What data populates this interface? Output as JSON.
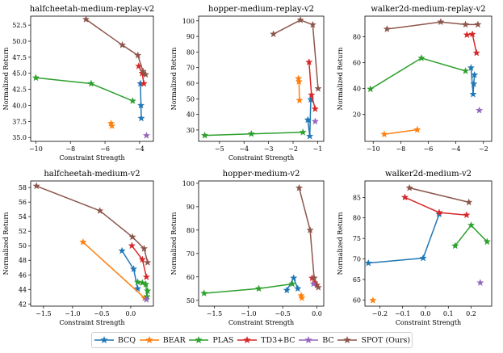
{
  "methods": [
    {
      "name": "BCQ",
      "color": "#1f77b4"
    },
    {
      "name": "BEAR",
      "color": "#ff7f0e"
    },
    {
      "name": "PLAS",
      "color": "#2ca02c"
    },
    {
      "name": "TD3+BC",
      "color": "#d62728"
    },
    {
      "name": "BC",
      "color": "#9467bd"
    },
    {
      "name": "SPOT (Ours)",
      "color": "#8c564b"
    }
  ],
  "chart_data": [
    {
      "type": "line",
      "title": "halfcheetah-medium-replay-v2",
      "xlabel": "Constraint Strength",
      "ylabel": "Normalized Return",
      "xlim": [
        -10.3,
        -3.2
      ],
      "ylim": [
        34.4,
        53.9
      ],
      "xticks": [
        -10,
        -8,
        -6,
        -4
      ],
      "yticks": [
        35.0,
        37.5,
        40.0,
        42.5,
        45.0,
        47.5,
        50.0,
        52.5
      ],
      "series": [
        {
          "name": "BCQ",
          "x": [
            -3.95,
            -3.92,
            -3.9
          ],
          "y": [
            43.4,
            40.0,
            38.0
          ]
        },
        {
          "name": "BEAR",
          "x": [
            -5.65,
            -5.6
          ],
          "y": [
            37.2,
            36.8
          ]
        },
        {
          "name": "PLAS",
          "x": [
            -10.0,
            -6.8,
            -4.4
          ],
          "y": [
            44.3,
            43.4,
            40.7
          ]
        },
        {
          "name": "TD3+BC",
          "x": [
            -4.05,
            -3.85,
            -3.75
          ],
          "y": [
            46.1,
            45.0,
            43.4
          ]
        },
        {
          "name": "BC",
          "x": [
            -3.6
          ],
          "y": [
            35.3
          ]
        },
        {
          "name": "SPOT (Ours)",
          "x": [
            -7.1,
            -5.0,
            -4.1,
            -3.8,
            -3.65
          ],
          "y": [
            53.4,
            49.4,
            47.8,
            45.3,
            44.8
          ]
        }
      ]
    },
    {
      "type": "line",
      "title": "hopper-medium-replay-v2",
      "xlabel": "Constraint Strength",
      "ylabel": "Normalized Return",
      "xlim": [
        -5.85,
        -0.75
      ],
      "ylim": [
        22.7,
        103.0
      ],
      "xticks": [
        -5,
        -4,
        -3,
        -2,
        -1
      ],
      "yticks": [
        30,
        40,
        50,
        60,
        70,
        80,
        90,
        100
      ],
      "series": [
        {
          "name": "BCQ",
          "x": [
            -1.4,
            -1.32,
            -1.28
          ],
          "y": [
            36.5,
            26.0,
            49.5
          ]
        },
        {
          "name": "BEAR",
          "x": [
            -1.78,
            -1.76,
            -1.74
          ],
          "y": [
            63.0,
            61.0,
            49.0
          ]
        },
        {
          "name": "PLAS",
          "x": [
            -5.6,
            -3.7,
            -1.6
          ],
          "y": [
            26.5,
            27.5,
            28.5
          ]
        },
        {
          "name": "TD3+BC",
          "x": [
            -1.35,
            -1.25,
            -1.1
          ],
          "y": [
            73.5,
            52.5,
            43.5
          ]
        },
        {
          "name": "BC",
          "x": [
            -1.1
          ],
          "y": [
            35.5
          ]
        },
        {
          "name": "SPOT (Ours)",
          "x": [
            -2.8,
            -1.7,
            -1.2,
            -0.98
          ],
          "y": [
            91.5,
            100.5,
            97.5,
            56.5
          ]
        }
      ]
    },
    {
      "type": "line",
      "title": "walker2d-medium-replay-v2",
      "xlabel": "",
      "ylabel": "Normalized Return",
      "xlim": [
        -10.6,
        -1.4
      ],
      "ylim": [
        -1,
        96
      ],
      "xticks": [
        -10,
        -8,
        -6,
        -4,
        -2
      ],
      "yticks": [
        20,
        40,
        60,
        80
      ],
      "series": [
        {
          "name": "BCQ",
          "x": [
            -2.9,
            -2.75,
            -2.7,
            -2.65
          ],
          "y": [
            56.0,
            35.5,
            43.5,
            50.5
          ]
        },
        {
          "name": "BEAR",
          "x": [
            -9.2,
            -6.8
          ],
          "y": [
            4.5,
            8.0
          ]
        },
        {
          "name": "PLAS",
          "x": [
            -10.2,
            -6.5,
            -3.3
          ],
          "y": [
            39.5,
            63.5,
            53.5
          ]
        },
        {
          "name": "TD3+BC",
          "x": [
            -3.2,
            -2.8,
            -2.5
          ],
          "y": [
            81.5,
            82.0,
            67.5
          ]
        },
        {
          "name": "BC",
          "x": [
            -2.3
          ],
          "y": [
            23.0
          ]
        },
        {
          "name": "SPOT (Ours)",
          "x": [
            -9.0,
            -5.1,
            -3.3,
            -2.4
          ],
          "y": [
            86.0,
            91.5,
            89.5,
            89.5
          ]
        }
      ]
    },
    {
      "type": "line",
      "title": "halfcheetah-medium-v2",
      "xlabel": "Constraint Strength",
      "ylabel": "Normalized Return",
      "xlim": [
        -1.72,
        0.39
      ],
      "ylim": [
        41.7,
        58.9
      ],
      "xticks": [
        -1.5,
        -1.0,
        -0.5,
        0.0
      ],
      "yticks": [
        42,
        44,
        46,
        48,
        50,
        52,
        54,
        56,
        58
      ],
      "series": [
        {
          "name": "BCQ",
          "x": [
            -0.15,
            0.05,
            0.12
          ],
          "y": [
            49.3,
            46.8,
            44.1
          ]
        },
        {
          "name": "BEAR",
          "x": [
            -0.82,
            0.24
          ],
          "y": [
            50.5,
            42.8
          ]
        },
        {
          "name": "PLAS",
          "x": [
            0.12,
            0.2,
            0.26,
            0.28,
            0.29
          ],
          "y": [
            45.0,
            44.9,
            44.7,
            43.0,
            43.8
          ]
        },
        {
          "name": "TD3+BC",
          "x": [
            0.02,
            0.2,
            0.27
          ],
          "y": [
            50.0,
            48.1,
            45.7
          ]
        },
        {
          "name": "BC",
          "x": [
            0.27
          ],
          "y": [
            42.6
          ]
        },
        {
          "name": "SPOT (Ours)",
          "x": [
            -1.62,
            -0.53,
            0.03,
            0.23,
            0.29
          ],
          "y": [
            58.2,
            54.8,
            51.2,
            49.6,
            47.7
          ]
        }
      ]
    },
    {
      "type": "line",
      "title": "hopper-medium-v2",
      "xlabel": "Constraint Strength",
      "ylabel": "Normalized Return",
      "xlim": [
        -1.73,
        0.1
      ],
      "ylim": [
        47.5,
        101
      ],
      "xticks": [
        -1.5,
        -1.0,
        -0.5,
        0.0
      ],
      "yticks": [
        50,
        60,
        70,
        80,
        90,
        100
      ],
      "series": [
        {
          "name": "BCQ",
          "x": [
            -0.44,
            -0.34,
            -0.28
          ],
          "y": [
            54.3,
            59.5,
            55.0
          ]
        },
        {
          "name": "BEAR",
          "x": [
            -0.23,
            -0.22
          ],
          "y": [
            52.0,
            51.0
          ]
        },
        {
          "name": "PLAS",
          "x": [
            -1.65,
            -0.85,
            -0.36
          ],
          "y": [
            53.0,
            55.0,
            57.0
          ]
        },
        {
          "name": "TD3+BC",
          "x": [
            -0.07,
            -0.03,
            0.0
          ],
          "y": [
            59.5,
            57.5,
            56.5
          ]
        },
        {
          "name": "BC",
          "x": [
            -0.05
          ],
          "y": [
            57.0
          ]
        },
        {
          "name": "SPOT (Ours)",
          "x": [
            -0.26,
            -0.1,
            -0.04,
            0.02
          ],
          "y": [
            98.0,
            80.0,
            59.5,
            55.5
          ]
        }
      ]
    },
    {
      "type": "line",
      "title": "walker2d-medium-v2",
      "xlabel": "Constraint Strength",
      "ylabel": "Normalized Return",
      "xlim": [
        -0.265,
        0.29
      ],
      "ylim": [
        58.5,
        89
      ],
      "xticks": [
        -0.2,
        -0.1,
        0.0,
        0.1,
        0.2
      ],
      "yticks": [
        60,
        65,
        70,
        75,
        80,
        85
      ],
      "series": [
        {
          "name": "BCQ",
          "x": [
            -0.25,
            -0.01,
            0.06
          ],
          "y": [
            69.0,
            70.2,
            80.9
          ]
        },
        {
          "name": "BEAR",
          "x": [
            -0.23
          ],
          "y": [
            59.9
          ]
        },
        {
          "name": "PLAS",
          "x": [
            0.13,
            0.2,
            0.27
          ],
          "y": [
            73.2,
            78.2,
            74.2
          ]
        },
        {
          "name": "TD3+BC",
          "x": [
            -0.09,
            0.06,
            0.18
          ],
          "y": [
            85.0,
            81.3,
            80.7
          ]
        },
        {
          "name": "BC",
          "x": [
            0.24
          ],
          "y": [
            64.2
          ]
        },
        {
          "name": "SPOT (Ours)",
          "x": [
            -0.07,
            0.19
          ],
          "y": [
            87.3,
            83.8
          ]
        }
      ]
    }
  ]
}
